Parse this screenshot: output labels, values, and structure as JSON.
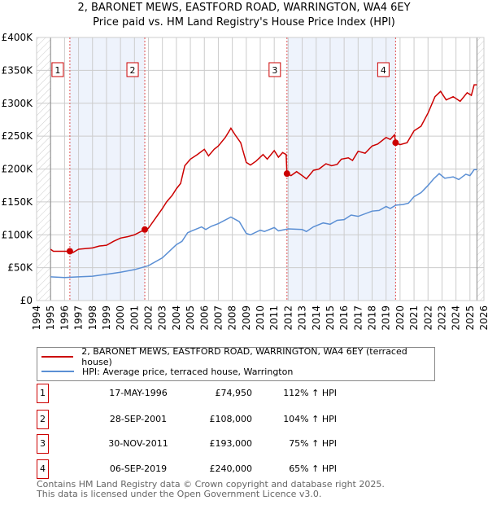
{
  "chart_data": {
    "type": "line",
    "title": "2, BARONET MEWS, EASTFORD ROAD, WARRINGTON, WA4 6EY",
    "subtitle": "Price paid vs. HM Land Registry's House Price Index (HPI)",
    "xlim": [
      1994,
      2026
    ],
    "ylim": [
      0,
      400000
    ],
    "x_ticks": [
      "1994",
      "1995",
      "1996",
      "1997",
      "1998",
      "1999",
      "2000",
      "2001",
      "2002",
      "2003",
      "2004",
      "2005",
      "2006",
      "2007",
      "2008",
      "2009",
      "2010",
      "2011",
      "2012",
      "2013",
      "2014",
      "2015",
      "2016",
      "2017",
      "2018",
      "2019",
      "2020",
      "2021",
      "2022",
      "2023",
      "2024",
      "2025",
      "2026"
    ],
    "y_ticks": [
      {
        "v": 0,
        "label": "£0"
      },
      {
        "v": 50000,
        "label": "£50K"
      },
      {
        "v": 100000,
        "label": "£100K"
      },
      {
        "v": 150000,
        "label": "£150K"
      },
      {
        "v": 200000,
        "label": "£200K"
      },
      {
        "v": 250000,
        "label": "£250K"
      },
      {
        "v": 300000,
        "label": "£300K"
      },
      {
        "v": 350000,
        "label": "£350K"
      },
      {
        "v": 400000,
        "label": "£400K"
      }
    ],
    "grid": true,
    "series": [
      {
        "name": "2, BARONET MEWS, EASTFORD ROAD, WARRINGTON, WA4 6EY (terraced house)",
        "color": "#cc0000",
        "x": [
          1995,
          1995.2,
          1996,
          1996.38,
          1996.6,
          1997,
          1998,
          1998.5,
          1999,
          1999.5,
          2000,
          2000.5,
          2001,
          2001.74,
          2002,
          2002.5,
          2003,
          2003.3,
          2003.7,
          2004,
          2004.3,
          2004.6,
          2005,
          2005.5,
          2006,
          2006.3,
          2006.7,
          2007,
          2007.5,
          2007.9,
          2008.2,
          2008.6,
          2009,
          2009.3,
          2009.7,
          2010.2,
          2010.5,
          2011,
          2011.3,
          2011.6,
          2011.85,
          2011.91,
          2012.2,
          2012.6,
          2013,
          2013.3,
          2013.8,
          2014.2,
          2014.7,
          2015.1,
          2015.5,
          2015.8,
          2016.3,
          2016.6,
          2017,
          2017.5,
          2018,
          2018.4,
          2019,
          2019.3,
          2019.6,
          2019.68,
          2020,
          2020.5,
          2021,
          2021.5,
          2022,
          2022.5,
          2022.9,
          2023.3,
          2023.8,
          2024.3,
          2024.8,
          2025.1,
          2025.3,
          2025.5
        ],
        "y": [
          78000,
          75000,
          75000,
          74950,
          73000,
          78000,
          80000,
          83000,
          84000,
          90000,
          95000,
          97000,
          100000,
          108000,
          110000,
          125000,
          140000,
          150000,
          160000,
          170000,
          178000,
          205000,
          215000,
          222000,
          230000,
          220000,
          230000,
          235000,
          248000,
          262000,
          252000,
          240000,
          210000,
          206000,
          212000,
          222000,
          215000,
          228000,
          218000,
          225000,
          222000,
          193000,
          190000,
          196000,
          190000,
          185000,
          198000,
          200000,
          208000,
          205000,
          207000,
          215000,
          217000,
          213000,
          227000,
          224000,
          235000,
          238000,
          248000,
          245000,
          252000,
          240000,
          237000,
          240000,
          258000,
          265000,
          285000,
          310000,
          318000,
          305000,
          310000,
          303000,
          316000,
          312000,
          328000,
          328000
        ]
      },
      {
        "name": "HPI: Average price, terraced house, Warrington",
        "color": "#5b8fd4",
        "x": [
          1995,
          1996,
          1997,
          1998,
          1999,
          2000,
          2001,
          2002,
          2003,
          2003.5,
          2004,
          2004.4,
          2004.8,
          2005,
          2005.8,
          2006.1,
          2006.5,
          2007,
          2007.9,
          2008.5,
          2009,
          2009.3,
          2010,
          2010.3,
          2011,
          2011.3,
          2012,
          2013,
          2013.3,
          2013.8,
          2014.5,
          2015,
          2015.5,
          2016,
          2016.5,
          2017,
          2018,
          2018.5,
          2019,
          2019.3,
          2019.7,
          2020.2,
          2020.6,
          2021,
          2021.5,
          2022,
          2022.4,
          2022.8,
          2023.2,
          2023.8,
          2024.2,
          2024.7,
          2025,
          2025.3,
          2025.5
        ],
        "y": [
          36000,
          35000,
          36000,
          37000,
          40000,
          43000,
          47000,
          53000,
          65000,
          75000,
          85000,
          90000,
          103000,
          105000,
          112000,
          108000,
          113000,
          117000,
          127000,
          120000,
          102000,
          100000,
          107000,
          105000,
          111000,
          106000,
          109000,
          108000,
          105000,
          112000,
          118000,
          116000,
          122000,
          123000,
          130000,
          128000,
          136000,
          137000,
          143000,
          140000,
          145000,
          146000,
          148000,
          158000,
          164000,
          175000,
          185000,
          193000,
          186000,
          188000,
          184000,
          192000,
          190000,
          199000,
          199000
        ]
      }
    ],
    "sales": [
      {
        "n": "1",
        "x": 1996.38,
        "y": 74950,
        "date": "17-MAY-1996",
        "price": "£74,950",
        "hpi": "112% ↑ HPI"
      },
      {
        "n": "2",
        "x": 2001.74,
        "y": 108000,
        "date": "28-SEP-2001",
        "price": "£108,000",
        "hpi": "104% ↑ HPI"
      },
      {
        "n": "3",
        "x": 2011.91,
        "y": 193000,
        "date": "30-NOV-2011",
        "price": "£193,000",
        "hpi": "75% ↑ HPI"
      },
      {
        "n": "4",
        "x": 2019.68,
        "y": 240000,
        "date": "06-SEP-2019",
        "price": "£240,000",
        "hpi": "65% ↑ HPI"
      }
    ],
    "shaded_ranges": [
      [
        1996.38,
        2001.74
      ],
      [
        2011.91,
        2019.68
      ]
    ],
    "hatched_ranges": [
      [
        1994,
        1995
      ],
      [
        2025.5,
        2026
      ]
    ]
  },
  "footer": {
    "line1": "Contains HM Land Registry data © Crown copyright and database right 2025.",
    "line2": "This data is licensed under the Open Government Licence v3.0."
  }
}
